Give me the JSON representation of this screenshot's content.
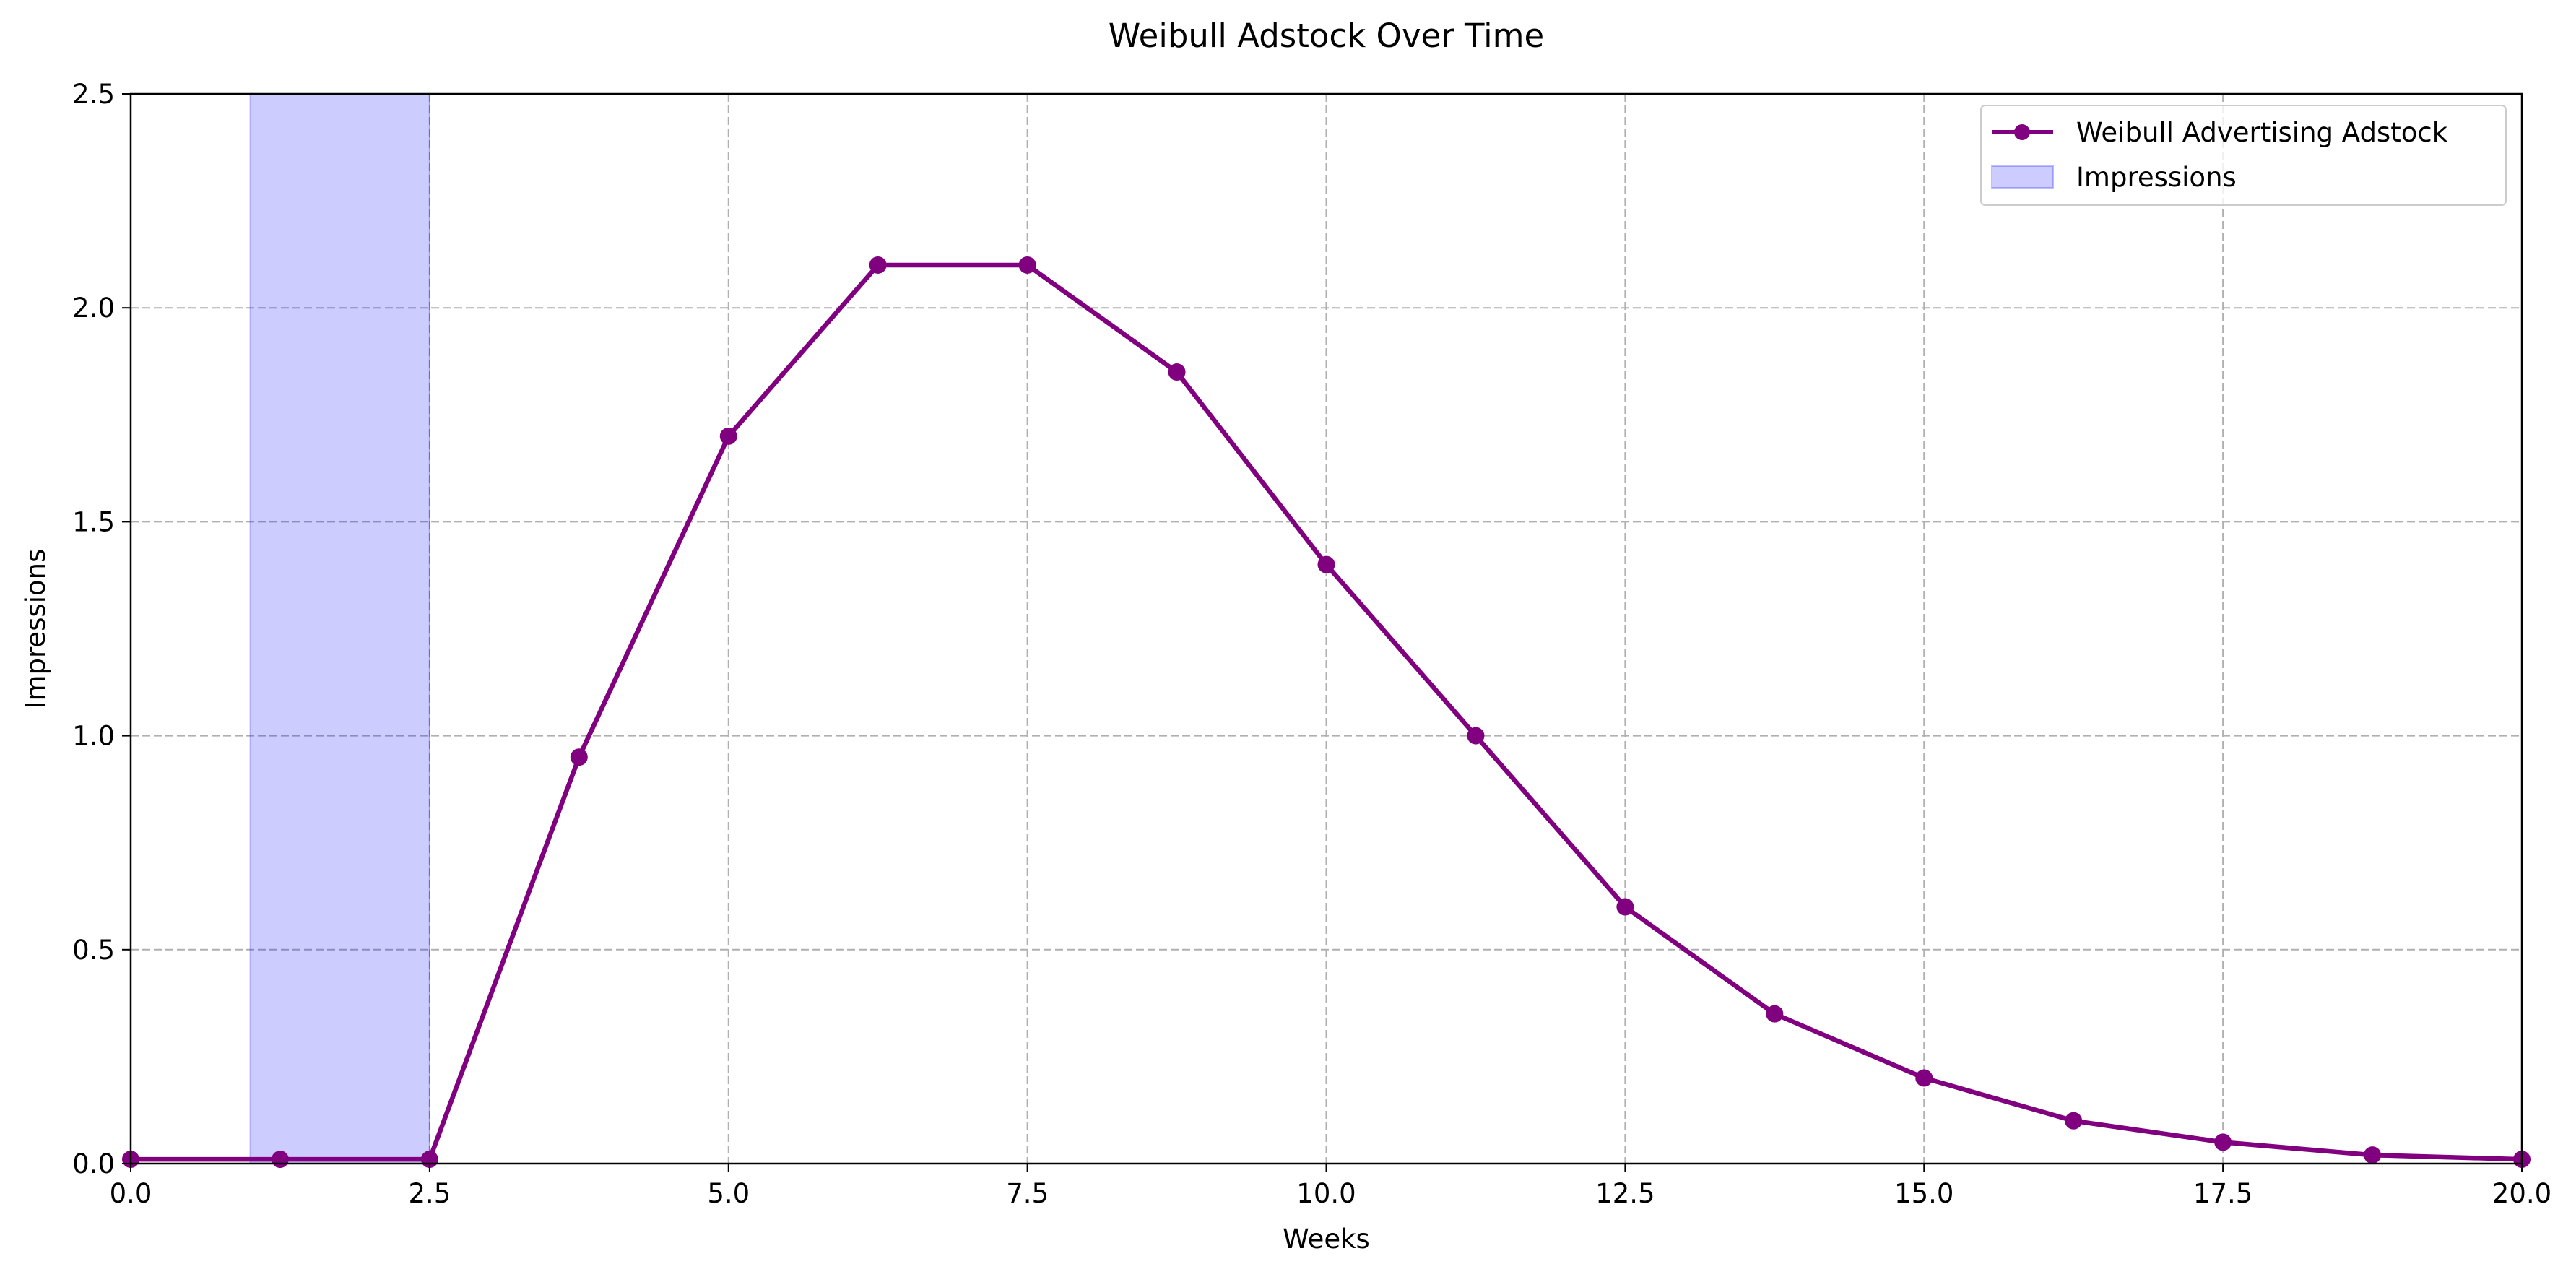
{
  "chart_data": {
    "type": "line",
    "title": "Weibull Adstock Over Time",
    "xlabel": "Weeks",
    "ylabel": "Impressions",
    "xlim": [
      0,
      20
    ],
    "ylim": [
      0,
      2.5
    ],
    "x_ticks": [
      "0.0",
      "2.5",
      "5.0",
      "7.5",
      "10.0",
      "12.5",
      "15.0",
      "17.5",
      "20.0"
    ],
    "y_ticks": [
      "0.0",
      "0.5",
      "1.0",
      "1.5",
      "2.0",
      "2.5"
    ],
    "grid": true,
    "legend_position": "top-right",
    "series": [
      {
        "name": "Weibull Advertising Adstock",
        "kind": "line",
        "color": "#800080",
        "marker": "circle",
        "x": [
          0,
          1.25,
          2.5,
          3.75,
          5.0,
          6.25,
          7.5,
          8.75,
          10.0,
          11.25,
          12.5,
          13.75,
          15.0,
          16.25,
          17.5,
          18.75,
          20.0
        ],
        "values": [
          0.01,
          0.01,
          0.01,
          0.95,
          1.7,
          2.1,
          2.1,
          1.85,
          1.4,
          1.0,
          0.6,
          0.35,
          0.2,
          0.1,
          0.05,
          0.02,
          0.01
        ]
      }
    ],
    "spans": [
      {
        "name": "Impressions",
        "color": "#0000ff",
        "alpha": 0.2,
        "x_start": 1.0,
        "x_end": 2.5
      }
    ]
  }
}
